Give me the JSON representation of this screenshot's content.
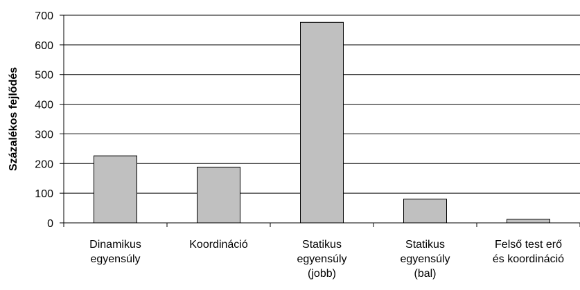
{
  "chart_data": {
    "type": "bar",
    "y_label": "Százalékos fejlődés",
    "categories": [
      "Dinamikus\negyensúly",
      "Koordináció",
      "Statikus\negyensúly\n(jobb)",
      "Statikus\negyensúly\n(bal)",
      "Felső test erő\nés koordináció"
    ],
    "values": [
      226,
      188,
      676,
      80,
      12
    ],
    "color": "#c0c0c0",
    "ylim": [
      0,
      700
    ],
    "yticks": [
      0,
      100,
      200,
      300,
      400,
      500,
      600,
      700
    ],
    "grid": true
  }
}
